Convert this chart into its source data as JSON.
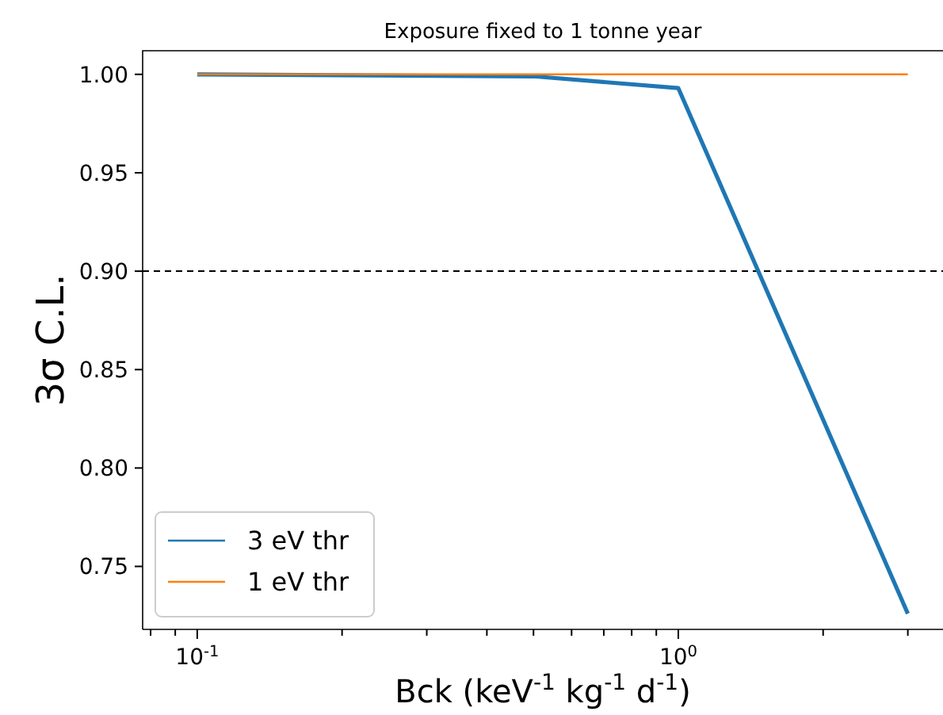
{
  "chart_data": {
    "type": "line",
    "title": "Exposure fixed to 1 tonne year",
    "xlabel": "Bck (keV$^{-1}$ kg$^{-1}$ d$^{-1}$)",
    "ylabel": "3σ C.L.",
    "x": [
      0.1,
      0.5,
      1.0,
      3.0
    ],
    "series": [
      {
        "name": "3 eV thr",
        "color": "#1f77b4",
        "values": [
          1.0,
          0.999,
          0.993,
          0.726
        ]
      },
      {
        "name": "1 eV thr",
        "color": "#ff7f0e",
        "values": [
          1.0,
          1.0,
          1.0,
          1.0
        ]
      }
    ],
    "log": "x",
    "xlim": [
      0.077,
      3.55
    ],
    "ylim": [
      0.718,
      1.012
    ],
    "xticks": [
      {
        "value": 0.08,
        "label": null
      },
      {
        "value": 0.09,
        "label": null
      },
      {
        "value": 0.1,
        "label": "10$^{-1}$"
      },
      {
        "value": 0.2,
        "label": null
      },
      {
        "value": 0.3,
        "label": null
      },
      {
        "value": 0.4,
        "label": null
      },
      {
        "value": 0.5,
        "label": null
      },
      {
        "value": 0.6,
        "label": null
      },
      {
        "value": 0.7,
        "label": null
      },
      {
        "value": 0.8,
        "label": null
      },
      {
        "value": 0.9,
        "label": null
      },
      {
        "value": 1,
        "label": "10$^{0}$"
      },
      {
        "value": 2,
        "label": null
      },
      {
        "value": 3,
        "label": null
      }
    ],
    "yticks": [
      {
        "value": 0.75,
        "label": "0.75"
      },
      {
        "value": 0.8,
        "label": "0.80"
      },
      {
        "value": 0.85,
        "label": "0.85"
      },
      {
        "value": 0.9,
        "label": "0.90"
      },
      {
        "value": 0.95,
        "label": "0.95"
      },
      {
        "value": 1.0,
        "label": "1.00"
      }
    ],
    "ref_lines": [
      {
        "axis": "y",
        "value": 0.9,
        "color": "#000000",
        "line_style": "dashed"
      }
    ],
    "legend": "bottom left",
    "grid": false
  }
}
